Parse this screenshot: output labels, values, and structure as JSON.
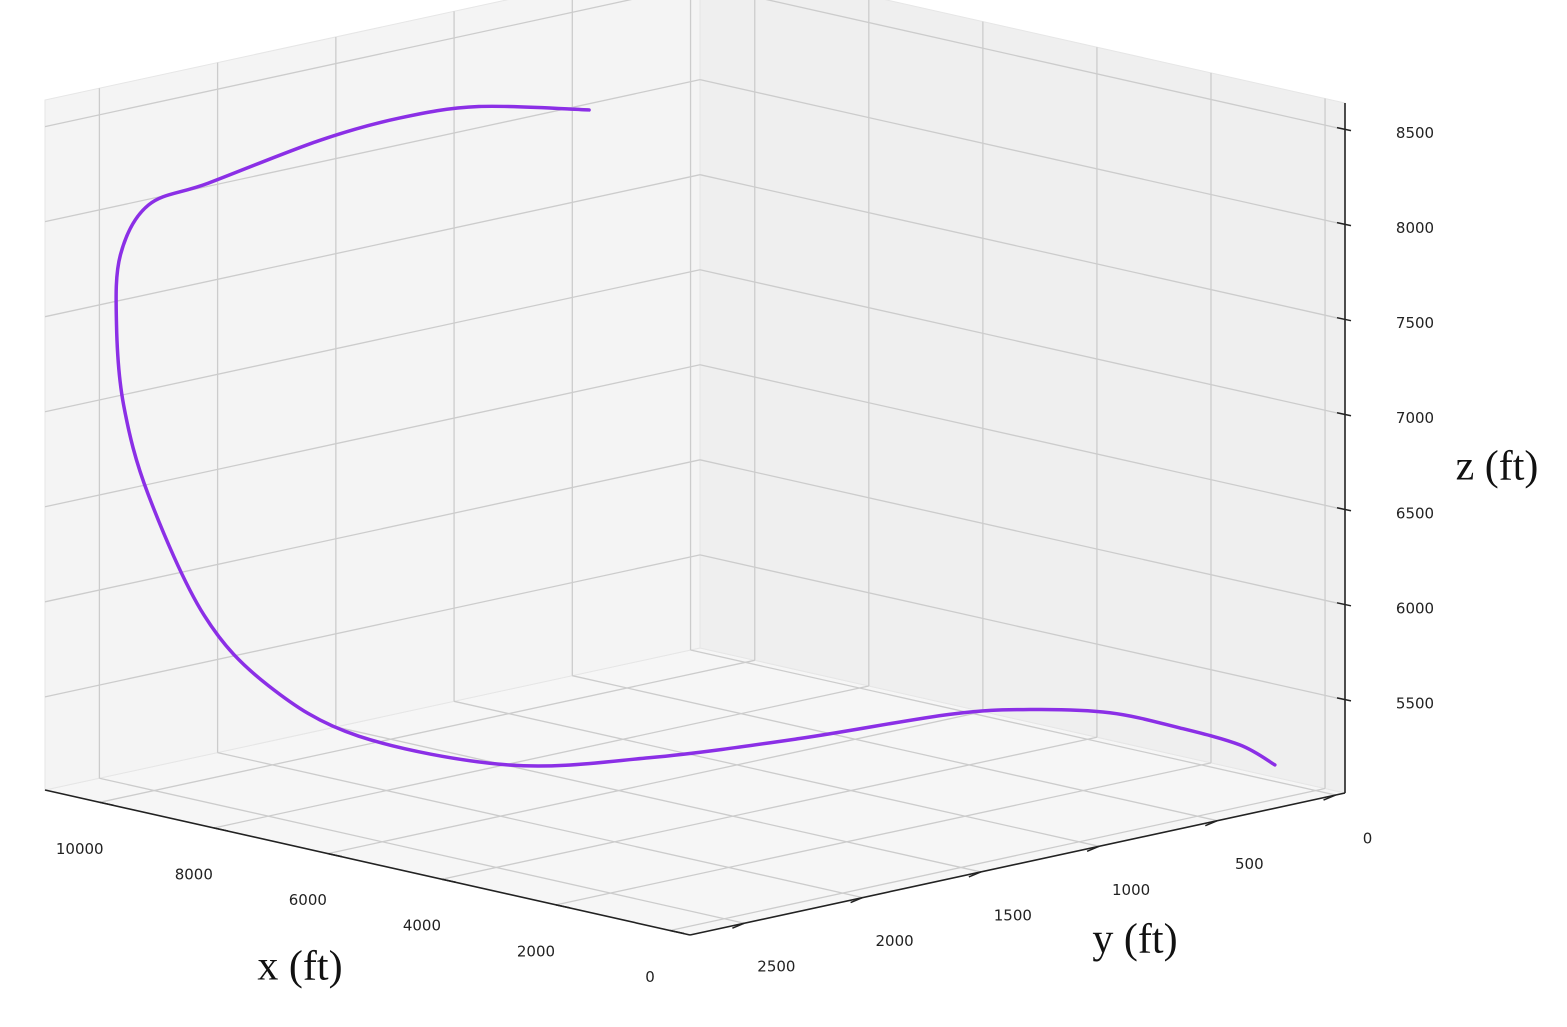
{
  "chart_data": {
    "type": "line3d",
    "xlabel": "x (ft)",
    "ylabel": "y (ft)",
    "zlabel": "z (ft)",
    "series": [
      {
        "color": "#8b2fe6",
        "x": [
          6561,
          7569,
          8098,
          8421,
          8969,
          9600,
          10119,
          10017,
          10170,
          9776,
          9058,
          8724,
          8207,
          7430,
          6663,
          5980,
          5121,
          4244,
          3277,
          2373,
          1258,
          540
        ],
        "y": [
          1490,
          1713,
          1924,
          2184,
          2519,
          2620,
          2614,
          2655,
          2588,
          2578,
          2516,
          2324,
          2067,
          1619,
          1212,
          740,
          313,
          185,
          80,
          2,
          17,
          42
        ],
        "z": [
          8550,
          8560,
          8520,
          8450,
          8280,
          8150,
          7850,
          7500,
          7050,
          6600,
          6000,
          5600,
          5300,
          5080,
          5060,
          5080,
          5150,
          5200,
          5220,
          5180,
          5170,
          5120
        ]
      }
    ],
    "xlim": [
      -350,
      10960
    ],
    "ylim": [
      -40,
      2730
    ],
    "zlim": [
      5010,
      8640
    ],
    "xticks": [
      0,
      2000,
      4000,
      6000,
      8000,
      10000
    ],
    "yticks": [
      0,
      500,
      1000,
      1500,
      2000,
      2500
    ],
    "zticks": [
      5500,
      6000,
      6500,
      7000,
      7500,
      8000,
      8500
    ],
    "grid": true
  }
}
